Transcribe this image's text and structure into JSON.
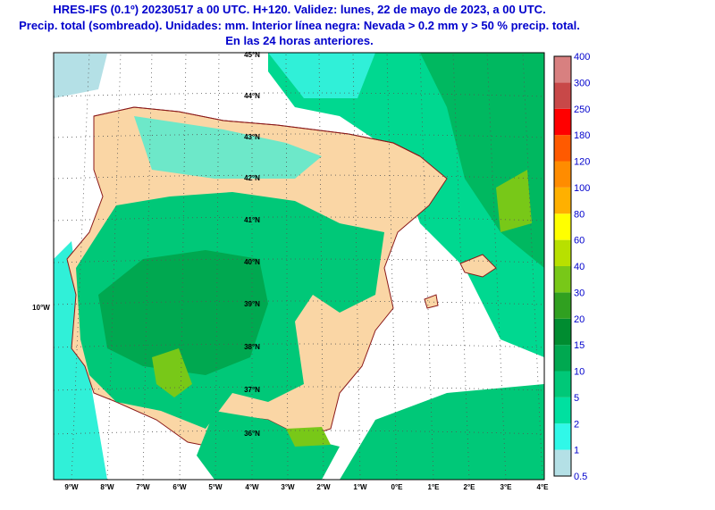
{
  "header": {
    "lines": [
      "HRES-IFS (0.1º) 20230517 a 00 UTC. H+120. Validez: lunes, 22 de mayo de 2023, a 00 UTC.",
      "Precip. total (sombreado). Unidades: mm. Interior línea negra: Nevada > 0.2 mm y > 50 % precip. total.",
      "En las 24 horas anteriores."
    ]
  },
  "map": {
    "lat_labels": [
      "45°N",
      "44°N",
      "43°N",
      "42°N",
      "41°N",
      "40°N",
      "39°N",
      "38°N",
      "37°N",
      "36°N"
    ],
    "side_label": "10°W",
    "lon_labels": [
      "9°W",
      "8°W",
      "7°W",
      "6°W",
      "5°W",
      "4°W",
      "3°W",
      "2°W",
      "1°W",
      "0°E",
      "1°E",
      "2°E",
      "3°E",
      "4°E"
    ]
  },
  "legend": {
    "levels": [
      0.5,
      1,
      2,
      5,
      10,
      15,
      20,
      30,
      40,
      60,
      80,
      100,
      120,
      180,
      250,
      300,
      400
    ],
    "colors": [
      "#b4e0e6",
      "#30f8e8",
      "#00e0a0",
      "#00c878",
      "#00a850",
      "#008c30",
      "#30a020",
      "#78c818",
      "#b8e000",
      "#ffff00",
      "#ffb000",
      "#ff8c00",
      "#ff5a00",
      "#ff0000",
      "#c84848",
      "#d88080",
      "#ecc0c0"
    ]
  }
}
